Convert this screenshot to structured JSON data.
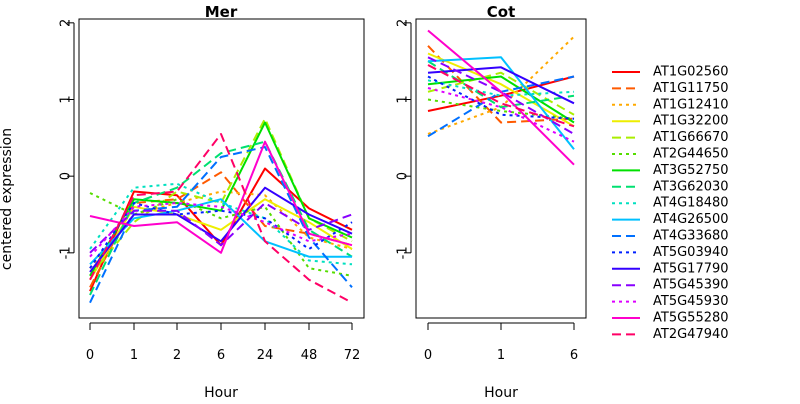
{
  "chart_data": [
    {
      "type": "line",
      "title": "Mer",
      "xlabel": "Hour",
      "ylabel": "centered expression",
      "categories": [
        "0",
        "1",
        "2",
        "6",
        "24",
        "48",
        "72"
      ],
      "ylim": [
        -1.85,
        2.05
      ],
      "yticks": [
        -1,
        0,
        1,
        2
      ],
      "series": [
        {
          "name": "AT1G02560",
          "values": [
            -1.5,
            -0.2,
            -0.25,
            -0.9,
            0.1,
            -0.42,
            -0.7
          ]
        },
        {
          "name": "AT1G11750",
          "values": [
            -1.45,
            -0.35,
            -0.3,
            0.05,
            -0.65,
            -0.75,
            -0.9
          ]
        },
        {
          "name": "AT1G12410",
          "values": [
            -1.2,
            -0.5,
            -0.35,
            -0.2,
            -0.25,
            -0.8,
            -0.95
          ]
        },
        {
          "name": "AT1G32200",
          "values": [
            -1.35,
            -0.4,
            -0.5,
            -0.7,
            -0.3,
            -0.6,
            -0.95
          ]
        },
        {
          "name": "AT1G66670",
          "values": [
            -1.3,
            -0.6,
            -0.2,
            -0.35,
            0.75,
            -0.55,
            -0.85
          ]
        },
        {
          "name": "AT2G44650",
          "values": [
            -0.22,
            -0.5,
            -0.3,
            -0.55,
            -0.4,
            -1.2,
            -1.3
          ]
        },
        {
          "name": "AT3G52750",
          "values": [
            -1.3,
            -0.3,
            -0.35,
            -0.45,
            0.7,
            -0.55,
            -0.8
          ]
        },
        {
          "name": "AT3G62030",
          "values": [
            -1.55,
            -0.35,
            -0.15,
            0.3,
            0.45,
            -0.7,
            -1.05
          ]
        },
        {
          "name": "AT4G18480",
          "values": [
            -0.95,
            -0.15,
            -0.1,
            -0.35,
            -0.55,
            -1.1,
            -1.15
          ]
        },
        {
          "name": "AT4G26500",
          "values": [
            -1.15,
            -0.55,
            -0.45,
            -0.3,
            -0.85,
            -1.05,
            -1.05
          ]
        },
        {
          "name": "AT4G33680",
          "values": [
            -1.65,
            -0.45,
            -0.4,
            0.25,
            0.38,
            -0.8,
            -1.45
          ]
        },
        {
          "name": "AT5G03940",
          "values": [
            -1.2,
            -0.35,
            -0.5,
            -0.45,
            -0.55,
            -0.95,
            -0.6
          ]
        },
        {
          "name": "AT5G17790",
          "values": [
            -1.25,
            -0.5,
            -0.5,
            -0.85,
            -0.15,
            -0.5,
            -0.75
          ]
        },
        {
          "name": "AT5G45390",
          "values": [
            -1.0,
            -0.45,
            -0.45,
            -0.9,
            -0.35,
            -0.7,
            -0.5
          ]
        },
        {
          "name": "AT5G45930",
          "values": [
            -1.05,
            -0.4,
            -0.35,
            -0.4,
            -0.6,
            -0.85,
            -0.75
          ]
        },
        {
          "name": "AT5G55280",
          "values": [
            -0.52,
            -0.65,
            -0.6,
            -1.0,
            0.45,
            -0.75,
            -0.9
          ]
        },
        {
          "name": "AT2G47940",
          "values": [
            -1.35,
            -0.25,
            -0.2,
            0.55,
            -0.85,
            -1.35,
            -1.65
          ]
        }
      ]
    },
    {
      "type": "line",
      "title": "Cot",
      "xlabel": "Hour",
      "ylabel": "",
      "categories": [
        "0",
        "1",
        "6"
      ],
      "ylim": [
        -1.85,
        2.05
      ],
      "yticks": [
        -1,
        0,
        1,
        2
      ],
      "series": [
        {
          "name": "AT1G02560",
          "values": [
            0.85,
            1.05,
            1.3
          ]
        },
        {
          "name": "AT1G11750",
          "values": [
            1.7,
            0.7,
            0.75
          ]
        },
        {
          "name": "AT1G12410",
          "values": [
            0.55,
            0.9,
            1.82
          ]
        },
        {
          "name": "AT1G32200",
          "values": [
            1.6,
            1.2,
            0.65
          ]
        },
        {
          "name": "AT1G66670",
          "values": [
            1.1,
            1.35,
            0.8
          ]
        },
        {
          "name": "AT2G44650",
          "values": [
            1.0,
            0.85,
            0.75
          ]
        },
        {
          "name": "AT3G52750",
          "values": [
            1.2,
            1.3,
            0.7
          ]
        },
        {
          "name": "AT3G62030",
          "values": [
            1.5,
            0.9,
            1.05
          ]
        },
        {
          "name": "AT4G18480",
          "values": [
            1.25,
            1.05,
            1.1
          ]
        },
        {
          "name": "AT4G26500",
          "values": [
            1.5,
            1.55,
            0.35
          ]
        },
        {
          "name": "AT4G33680",
          "values": [
            0.52,
            1.1,
            1.3
          ]
        },
        {
          "name": "AT5G03940",
          "values": [
            1.3,
            0.8,
            0.75
          ]
        },
        {
          "name": "AT5G17790",
          "values": [
            1.35,
            1.42,
            0.95
          ]
        },
        {
          "name": "AT5G45390",
          "values": [
            1.55,
            1.1,
            0.55
          ]
        },
        {
          "name": "AT5G45930",
          "values": [
            1.15,
            0.9,
            0.45
          ]
        },
        {
          "name": "AT5G55280",
          "values": [
            1.9,
            1.1,
            0.15
          ]
        },
        {
          "name": "AT2G47940",
          "values": [
            1.45,
            0.95,
            0.65
          ]
        }
      ]
    }
  ],
  "legend": {
    "placement": "right",
    "items": [
      {
        "label": "AT1G02560",
        "color": "#ff0000",
        "dash": "solid"
      },
      {
        "label": "AT1G11750",
        "color": "#ff5a00",
        "dash": "dashed"
      },
      {
        "label": "AT1G12410",
        "color": "#ffaa00",
        "dash": "dotted"
      },
      {
        "label": "AT1G32200",
        "color": "#eeee00",
        "dash": "solid"
      },
      {
        "label": "AT1G66670",
        "color": "#aaee00",
        "dash": "dashed"
      },
      {
        "label": "AT2G44650",
        "color": "#55dd00",
        "dash": "dotted"
      },
      {
        "label": "AT3G52750",
        "color": "#00e000",
        "dash": "solid"
      },
      {
        "label": "AT3G62030",
        "color": "#00e070",
        "dash": "dashed"
      },
      {
        "label": "AT4G18480",
        "color": "#00e0c0",
        "dash": "dotted"
      },
      {
        "label": "AT4G26500",
        "color": "#00c0ff",
        "dash": "solid"
      },
      {
        "label": "AT4G33680",
        "color": "#0070ff",
        "dash": "dashed"
      },
      {
        "label": "AT5G03940",
        "color": "#0020ff",
        "dash": "dotted"
      },
      {
        "label": "AT5G17790",
        "color": "#3300ff",
        "dash": "solid"
      },
      {
        "label": "AT5G45390",
        "color": "#8800ff",
        "dash": "dashed"
      },
      {
        "label": "AT5G45930",
        "color": "#dd00ff",
        "dash": "dotted"
      },
      {
        "label": "AT5G55280",
        "color": "#ff00cc",
        "dash": "solid"
      },
      {
        "label": "AT2G47940",
        "color": "#ff0066",
        "dash": "dashed"
      }
    ]
  }
}
